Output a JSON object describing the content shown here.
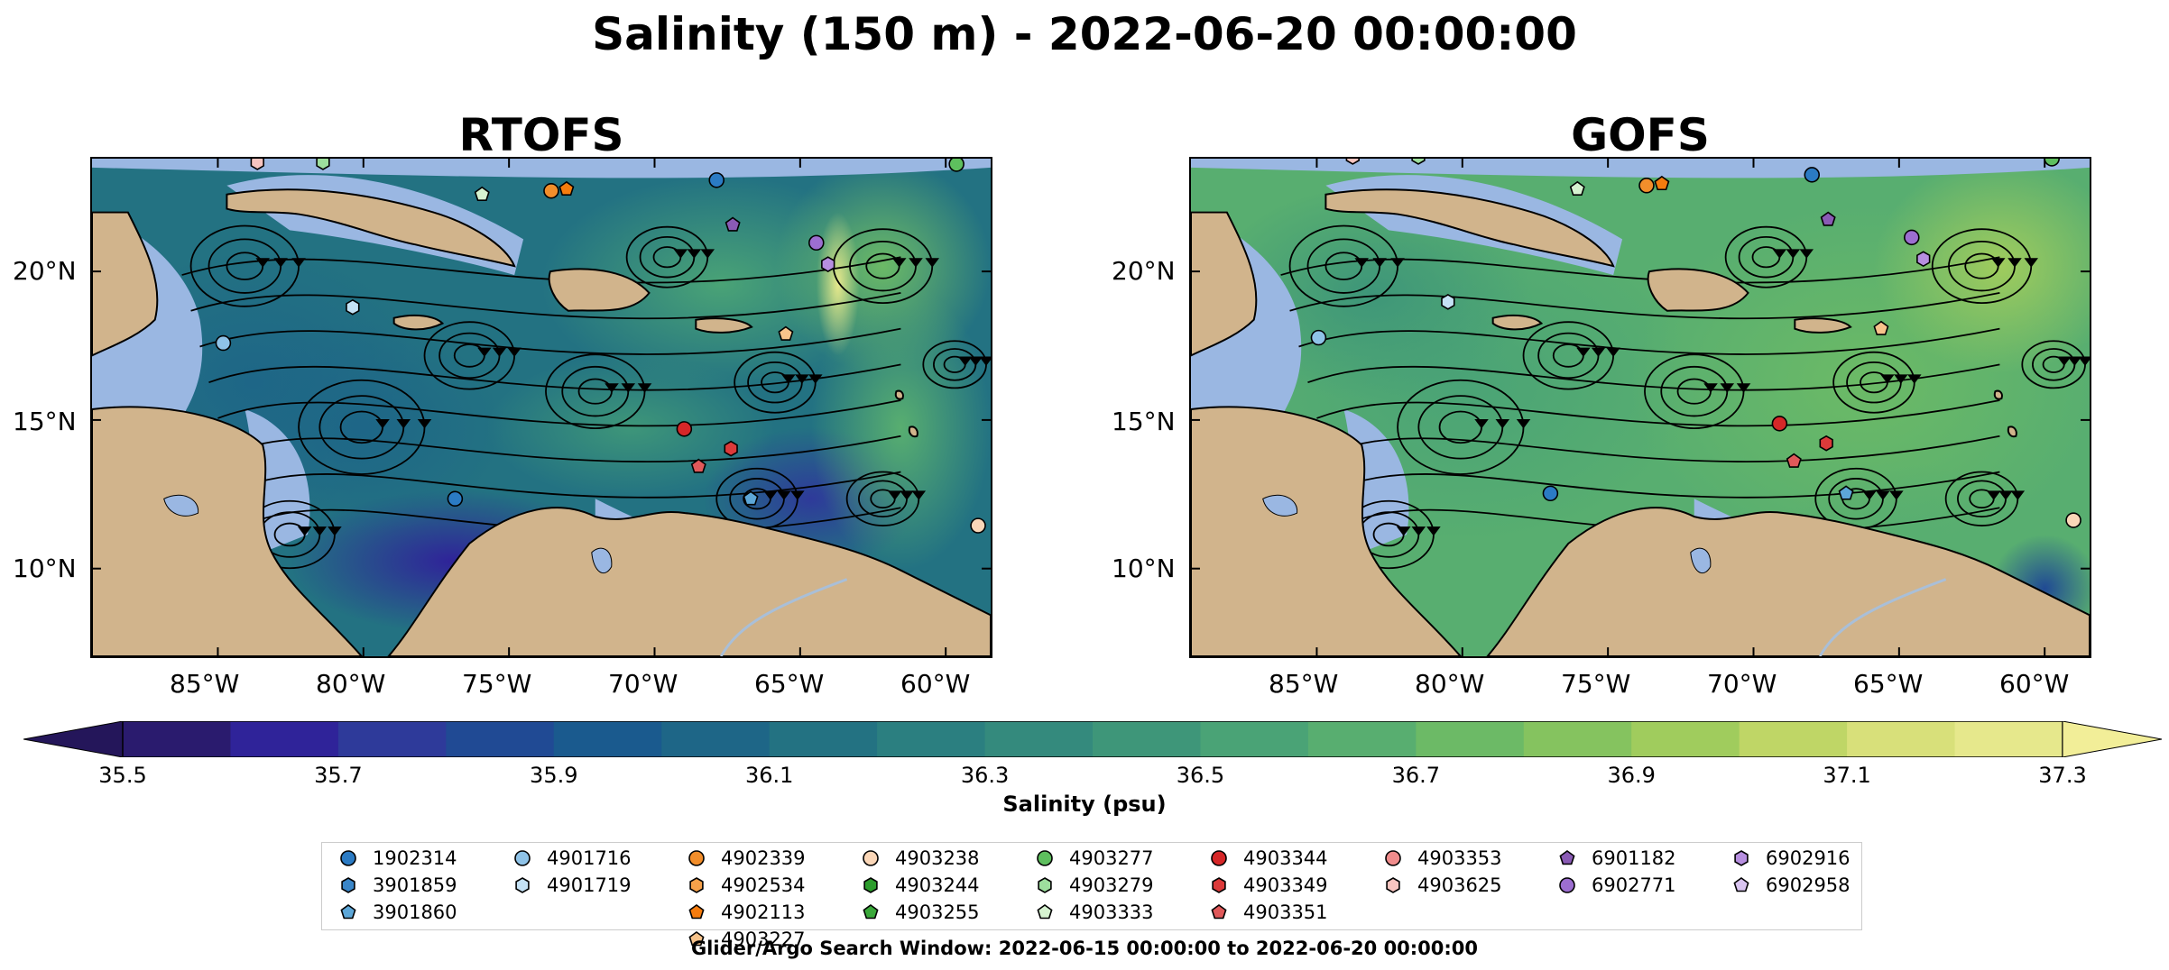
{
  "title": "Salinity (150 m) - 2022-06-20 00:00:00",
  "panels": [
    {
      "title": "RTOFS"
    },
    {
      "title": "GOFS"
    }
  ],
  "axes": {
    "lon_ticks": [
      "85°W",
      "80°W",
      "75°W",
      "70°W",
      "65°W",
      "60°W"
    ],
    "lat_ticks": [
      "20°N",
      "15°N",
      "10°N"
    ]
  },
  "colorbar": {
    "label": "Salinity (psu)",
    "ticks": [
      "35.5",
      "35.7",
      "35.9",
      "36.1",
      "36.3",
      "36.5",
      "36.7",
      "36.9",
      "37.1",
      "37.3"
    ],
    "colors": [
      "#2a1b6e",
      "#2f2399",
      "#2e3a9a",
      "#204a94",
      "#1a5a8e",
      "#1e6687",
      "#237282",
      "#2b7f80",
      "#348a7d",
      "#3e9679",
      "#4aa376",
      "#58ae70",
      "#6cba66",
      "#85c35f",
      "#a0cc5d",
      "#bfd666",
      "#d8e07a",
      "#e6e88c"
    ],
    "under_color": "#24165a",
    "over_color": "#f2ee98"
  },
  "legend": {
    "columns": [
      [
        {
          "id": "1902314",
          "marker": "circle",
          "color": "#2b7bc4"
        },
        {
          "id": "3901859",
          "marker": "hexagon",
          "color": "#3a86c8"
        },
        {
          "id": "3901860",
          "marker": "pentagon",
          "color": "#5da7d8"
        }
      ],
      [
        {
          "id": "4901716",
          "marker": "circle",
          "color": "#8fc3e8"
        },
        {
          "id": "4901719",
          "marker": "hexagon",
          "color": "#c5e2f5"
        }
      ],
      [
        {
          "id": "4902339",
          "marker": "circle",
          "color": "#f28e2b"
        },
        {
          "id": "4902534",
          "marker": "hexagon",
          "color": "#f6a14a"
        },
        {
          "id": "4902113",
          "marker": "pentagon",
          "color": "#f57c0e"
        },
        {
          "id": "4903227",
          "marker": "pentagon",
          "color": "#f7c38b"
        }
      ],
      [
        {
          "id": "4903238",
          "marker": "circle",
          "color": "#fbd7b8"
        },
        {
          "id": "4903244",
          "marker": "hexagon",
          "color": "#2c9c2c"
        },
        {
          "id": "4903255",
          "marker": "pentagon",
          "color": "#3aa83a"
        }
      ],
      [
        {
          "id": "4903277",
          "marker": "circle",
          "color": "#5ebf5e"
        },
        {
          "id": "4903279",
          "marker": "hexagon",
          "color": "#9ddf9d"
        },
        {
          "id": "4903333",
          "marker": "pentagon",
          "color": "#d6f3d0"
        }
      ],
      [
        {
          "id": "4903344",
          "marker": "circle",
          "color": "#d62728"
        },
        {
          "id": "4903349",
          "marker": "hexagon",
          "color": "#dc3a3a"
        },
        {
          "id": "4903351",
          "marker": "pentagon",
          "color": "#e0595a"
        }
      ],
      [
        {
          "id": "4903353",
          "marker": "circle",
          "color": "#f08c8c"
        },
        {
          "id": "4903625",
          "marker": "hexagon",
          "color": "#f8c5c0"
        }
      ],
      [
        {
          "id": "6901182",
          "marker": "pentagon",
          "color": "#8a5bb5"
        },
        {
          "id": "6902771",
          "marker": "circle",
          "color": "#9c6ed0"
        }
      ],
      [
        {
          "id": "6902916",
          "marker": "hexagon",
          "color": "#b78fe0"
        },
        {
          "id": "6902958",
          "marker": "pentagon",
          "color": "#d9c4f0"
        }
      ]
    ]
  },
  "footnote": "Glider/Argo Search Window: 2022-06-15 00:00:00 to 2022-06-20 00:00:00",
  "colors": {
    "land": "#d1b48c",
    "shelf": "#9ab7e2",
    "coast": "#000000"
  }
}
